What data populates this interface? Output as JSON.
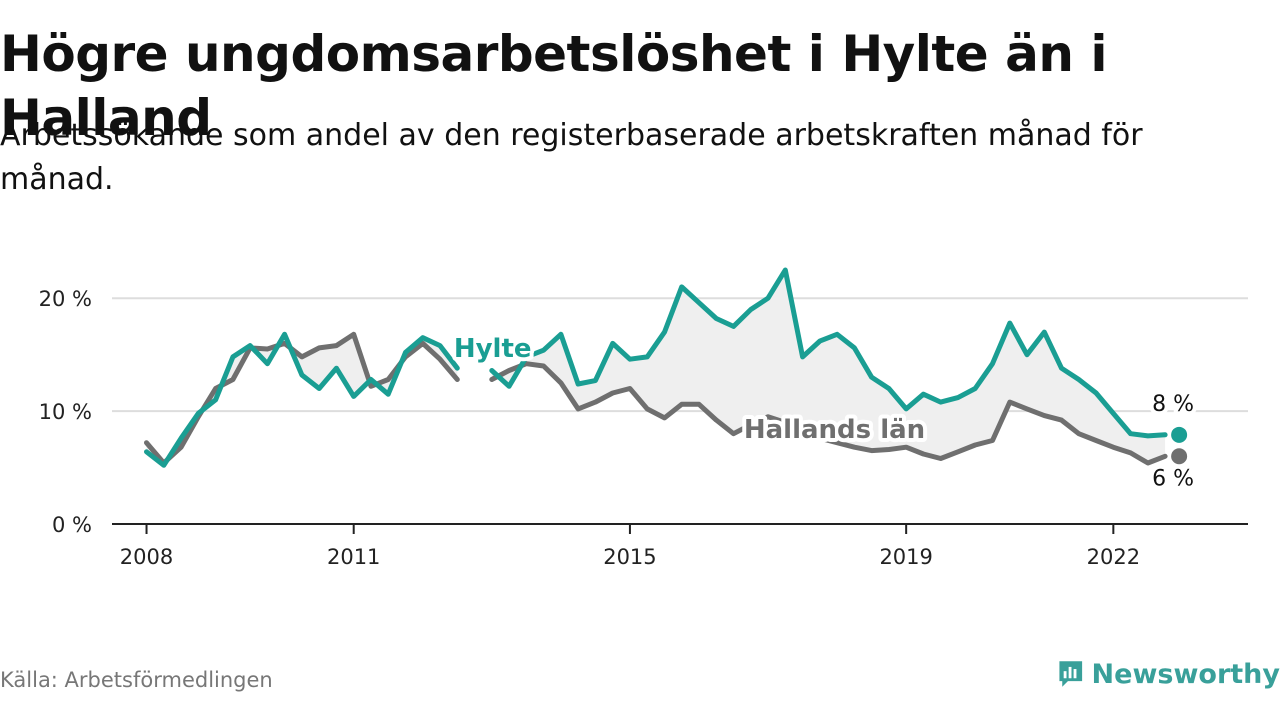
{
  "title": "Högre ungdomsarbetslöshet i Hylte än i Halland",
  "subtitle": "Arbetssökande som andel av den registerbaserade arbetskraften månad för månad.",
  "source": "Källa: Arbetsförmedlingen",
  "brand": "Newsworthy",
  "colors": {
    "hylte": "#1a9e93",
    "halland": "#6f6f6f",
    "fill": "#efefef",
    "grid": "#dddddd",
    "brand": "#39a09a"
  },
  "chart_data": {
    "type": "line",
    "title": "Högre ungdomsarbetslöshet i Hylte än i Halland",
    "xlabel": "",
    "ylabel": "",
    "x_range": [
      2007.5,
      2023.95
    ],
    "ylim": [
      0,
      22.5
    ],
    "x_ticks": [
      {
        "value": 2008,
        "label": "2008"
      },
      {
        "value": 2011,
        "label": "2011"
      },
      {
        "value": 2015,
        "label": "2015"
      },
      {
        "value": 2019,
        "label": "2019"
      },
      {
        "value": 2022,
        "label": "2022"
      }
    ],
    "y_ticks": [
      {
        "value": 0,
        "label": "0 %"
      },
      {
        "value": 10,
        "label": "10 %"
      },
      {
        "value": 20,
        "label": "20 %"
      }
    ],
    "x": [
      2008.0,
      2008.25,
      2008.5,
      2008.75,
      2009.0,
      2009.25,
      2009.5,
      2009.75,
      2010.0,
      2010.25,
      2010.5,
      2010.75,
      2011.0,
      2011.25,
      2011.5,
      2011.75,
      2012.0,
      2012.25,
      2012.5,
      2012.75,
      2013.0,
      2013.25,
      2013.5,
      2013.75,
      2014.0,
      2014.25,
      2014.5,
      2014.75,
      2015.0,
      2015.25,
      2015.5,
      2015.75,
      2016.0,
      2016.25,
      2016.5,
      2016.75,
      2017.0,
      2017.25,
      2017.5,
      2017.75,
      2018.0,
      2018.25,
      2018.5,
      2018.75,
      2019.0,
      2019.25,
      2019.5,
      2019.75,
      2020.0,
      2020.25,
      2020.5,
      2020.75,
      2021.0,
      2021.25,
      2021.5,
      2021.75,
      2022.0,
      2022.25,
      2022.5,
      2022.75
    ],
    "series": [
      {
        "name": "Hylte",
        "label": "Hylte",
        "end_label": "8 %",
        "values": [
          6.4,
          5.2,
          7.6,
          9.8,
          11.0,
          14.8,
          15.8,
          14.2,
          16.8,
          13.2,
          12.0,
          13.8,
          11.3,
          12.8,
          11.5,
          15.2,
          16.5,
          15.8,
          13.8,
          null,
          13.6,
          12.2,
          14.8,
          15.4,
          16.8,
          12.4,
          12.7,
          16.0,
          14.6,
          14.8,
          17.0,
          21.0,
          19.6,
          18.2,
          17.5,
          19.0,
          20.0,
          22.5,
          14.8,
          16.2,
          16.8,
          15.6,
          13.0,
          12.0,
          10.2,
          11.5,
          10.8,
          11.2,
          12.0,
          14.2,
          17.8,
          15.0,
          17.0,
          13.8,
          12.8,
          11.6,
          9.8,
          8.0,
          7.8,
          7.9
        ]
      },
      {
        "name": "Hallands län",
        "label": "Hallands län",
        "end_label": "6 %",
        "values": [
          7.2,
          5.4,
          6.8,
          9.5,
          12.0,
          12.8,
          15.6,
          15.5,
          16.0,
          14.8,
          15.6,
          15.8,
          16.8,
          12.2,
          12.8,
          14.8,
          16.0,
          14.6,
          12.8,
          null,
          12.8,
          13.6,
          14.2,
          14.0,
          12.5,
          10.2,
          10.8,
          11.6,
          12.0,
          10.2,
          9.4,
          10.6,
          10.6,
          9.2,
          8.0,
          8.8,
          9.5,
          9.0,
          8.2,
          7.6,
          7.2,
          6.8,
          6.5,
          6.6,
          6.8,
          6.2,
          5.8,
          6.4,
          7.0,
          7.4,
          10.8,
          10.2,
          9.6,
          9.2,
          8.0,
          7.4,
          6.8,
          6.3,
          5.4,
          6.0
        ]
      }
    ],
    "annotations": [
      "Hylte",
      "Hallands län",
      "8 %",
      "6 %"
    ]
  }
}
